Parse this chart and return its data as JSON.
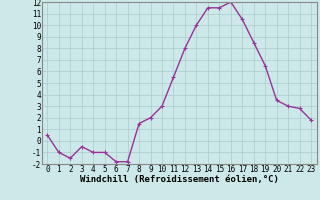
{
  "x": [
    0,
    1,
    2,
    3,
    4,
    5,
    6,
    7,
    8,
    9,
    10,
    11,
    12,
    13,
    14,
    15,
    16,
    17,
    18,
    19,
    20,
    21,
    22,
    23
  ],
  "y": [
    0.5,
    -1.0,
    -1.5,
    -0.5,
    -1.0,
    -1.0,
    -1.8,
    -1.8,
    1.5,
    2.0,
    3.0,
    5.5,
    8.0,
    10.0,
    11.5,
    11.5,
    12.0,
    10.5,
    8.5,
    6.5,
    3.5,
    3.0,
    2.8,
    1.8
  ],
  "line_color": "#993399",
  "marker": "+",
  "marker_size": 3,
  "bg_color": "#cce8e8",
  "grid_color": "#aacccc",
  "xlabel": "Windchill (Refroidissement éolien,°C)",
  "xlabel_fontsize": 6.5,
  "ylim": [
    -2,
    12
  ],
  "xlim": [
    -0.5,
    23.5
  ],
  "yticks": [
    -2,
    -1,
    0,
    1,
    2,
    3,
    4,
    5,
    6,
    7,
    8,
    9,
    10,
    11,
    12
  ],
  "xticks": [
    0,
    1,
    2,
    3,
    4,
    5,
    6,
    7,
    8,
    9,
    10,
    11,
    12,
    13,
    14,
    15,
    16,
    17,
    18,
    19,
    20,
    21,
    22,
    23
  ],
  "tick_fontsize": 5.5,
  "line_width": 1.0,
  "spine_color": "#888888",
  "axis_bg": "#cce8e8"
}
